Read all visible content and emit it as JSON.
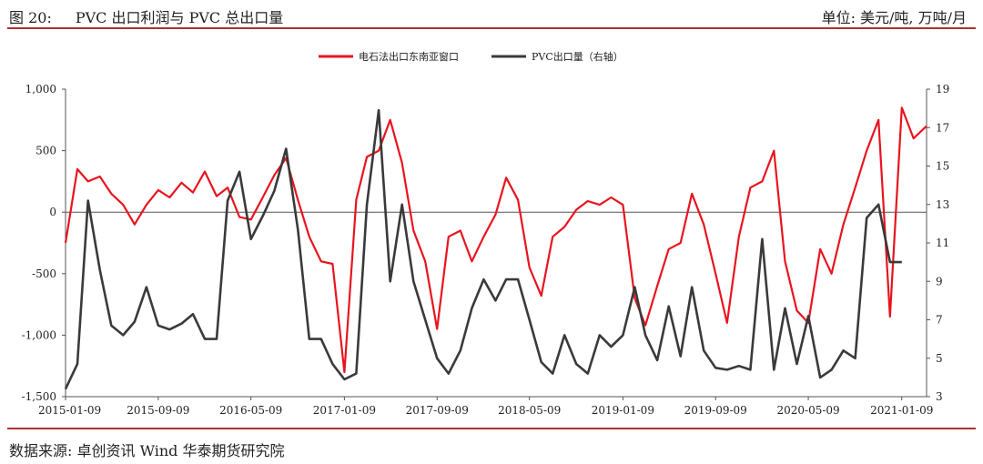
{
  "figure": {
    "label": "图 20:",
    "title": "PVC 出口利润与 PVC 总出口量",
    "unit": "单位: 美元/吨, 万吨/月",
    "source": "数据来源: 卓创资讯 Wind 华泰期货研究院"
  },
  "chart_data": {
    "type": "line",
    "legend_position": "top-center",
    "grid": false,
    "x_ticks": [
      "2015-01-09",
      "2015-09-09",
      "2016-05-09",
      "2017-01-09",
      "2017-09-09",
      "2018-05-09",
      "2019-01-09",
      "2019-09-09",
      "2020-05-09",
      "2021-01-09"
    ],
    "x_range": [
      "2015-01-09",
      "2021-03-15"
    ],
    "y_left": {
      "range": [
        -1500,
        1000
      ],
      "ticks": [
        "-1,500",
        "-1,000",
        "-500",
        "0",
        "500",
        "1,000"
      ]
    },
    "y_right": {
      "range": [
        3,
        19
      ],
      "ticks": [
        "3",
        "5",
        "7",
        "9",
        "11",
        "13",
        "15",
        "17",
        "19"
      ]
    },
    "series": [
      {
        "name": "电石法出口东南亚窗口",
        "axis": "left",
        "color": "#e8141e",
        "points": [
          [
            "2015-01-09",
            -250
          ],
          [
            "2015-02-09",
            350
          ],
          [
            "2015-03-09",
            250
          ],
          [
            "2015-04-09",
            290
          ],
          [
            "2015-05-09",
            150
          ],
          [
            "2015-06-09",
            60
          ],
          [
            "2015-07-09",
            -100
          ],
          [
            "2015-08-09",
            60
          ],
          [
            "2015-09-09",
            180
          ],
          [
            "2015-10-09",
            120
          ],
          [
            "2015-11-09",
            240
          ],
          [
            "2015-12-09",
            160
          ],
          [
            "2016-01-09",
            330
          ],
          [
            "2016-02-09",
            130
          ],
          [
            "2016-03-09",
            200
          ],
          [
            "2016-04-09",
            -40
          ],
          [
            "2016-05-09",
            -60
          ],
          [
            "2016-06-09",
            120
          ],
          [
            "2016-07-09",
            300
          ],
          [
            "2016-08-09",
            440
          ],
          [
            "2016-09-09",
            100
          ],
          [
            "2016-10-09",
            -200
          ],
          [
            "2016-11-09",
            -400
          ],
          [
            "2016-12-09",
            -420
          ],
          [
            "2017-01-09",
            -1300
          ],
          [
            "2017-02-09",
            100
          ],
          [
            "2017-03-09",
            450
          ],
          [
            "2017-04-09",
            500
          ],
          [
            "2017-05-09",
            750
          ],
          [
            "2017-06-09",
            400
          ],
          [
            "2017-07-09",
            -150
          ],
          [
            "2017-08-09",
            -400
          ],
          [
            "2017-09-09",
            -950
          ],
          [
            "2017-10-09",
            -200
          ],
          [
            "2017-11-09",
            -150
          ],
          [
            "2017-12-09",
            -400
          ],
          [
            "2018-01-09",
            -200
          ],
          [
            "2018-02-09",
            -20
          ],
          [
            "2018-03-09",
            280
          ],
          [
            "2018-04-09",
            100
          ],
          [
            "2018-05-09",
            -450
          ],
          [
            "2018-06-09",
            -680
          ],
          [
            "2018-07-09",
            -200
          ],
          [
            "2018-08-09",
            -120
          ],
          [
            "2018-09-09",
            20
          ],
          [
            "2018-10-09",
            90
          ],
          [
            "2018-11-09",
            60
          ],
          [
            "2018-12-09",
            120
          ],
          [
            "2019-01-09",
            60
          ],
          [
            "2019-02-09",
            -700
          ],
          [
            "2019-03-09",
            -920
          ],
          [
            "2019-04-09",
            -600
          ],
          [
            "2019-05-09",
            -300
          ],
          [
            "2019-06-09",
            -250
          ],
          [
            "2019-07-09",
            150
          ],
          [
            "2019-08-09",
            -100
          ],
          [
            "2019-09-09",
            -500
          ],
          [
            "2019-10-09",
            -900
          ],
          [
            "2019-11-09",
            -200
          ],
          [
            "2019-12-09",
            200
          ],
          [
            "2020-01-09",
            250
          ],
          [
            "2020-02-09",
            500
          ],
          [
            "2020-03-09",
            -400
          ],
          [
            "2020-04-09",
            -800
          ],
          [
            "2020-05-09",
            -900
          ],
          [
            "2020-06-09",
            -300
          ],
          [
            "2020-07-09",
            -500
          ],
          [
            "2020-08-09",
            -100
          ],
          [
            "2020-09-09",
            200
          ],
          [
            "2020-10-09",
            500
          ],
          [
            "2020-11-09",
            750
          ],
          [
            "2020-12-09",
            -850
          ],
          [
            "2021-01-09",
            850
          ],
          [
            "2021-02-09",
            600
          ],
          [
            "2021-03-15",
            700
          ]
        ]
      },
      {
        "name": "PVC出口量（右轴）",
        "axis": "right",
        "color": "#3a3a3a",
        "points": [
          [
            "2015-01-09",
            3.4
          ],
          [
            "2015-02-09",
            4.7
          ],
          [
            "2015-03-09",
            13.2
          ],
          [
            "2015-04-09",
            9.6
          ],
          [
            "2015-05-09",
            6.7
          ],
          [
            "2015-06-09",
            6.2
          ],
          [
            "2015-07-09",
            6.9
          ],
          [
            "2015-08-09",
            8.7
          ],
          [
            "2015-09-09",
            6.7
          ],
          [
            "2015-10-09",
            6.5
          ],
          [
            "2015-11-09",
            6.8
          ],
          [
            "2015-12-09",
            7.3
          ],
          [
            "2016-01-09",
            6.0
          ],
          [
            "2016-02-09",
            6.0
          ],
          [
            "2016-03-09",
            13.2
          ],
          [
            "2016-04-09",
            14.7
          ],
          [
            "2016-05-09",
            11.2
          ],
          [
            "2016-06-09",
            12.4
          ],
          [
            "2016-07-09",
            13.7
          ],
          [
            "2016-08-09",
            15.9
          ],
          [
            "2016-09-09",
            11.7
          ],
          [
            "2016-10-09",
            6.0
          ],
          [
            "2016-11-09",
            6.0
          ],
          [
            "2016-12-09",
            4.7
          ],
          [
            "2017-01-09",
            3.9
          ],
          [
            "2017-02-09",
            4.2
          ],
          [
            "2017-03-09",
            13.0
          ],
          [
            "2017-04-09",
            17.9
          ],
          [
            "2017-05-09",
            9.0
          ],
          [
            "2017-06-09",
            13.0
          ],
          [
            "2017-07-09",
            9.0
          ],
          [
            "2017-08-09",
            7.0
          ],
          [
            "2017-09-09",
            5.0
          ],
          [
            "2017-10-09",
            4.2
          ],
          [
            "2017-11-09",
            5.4
          ],
          [
            "2017-12-09",
            7.6
          ],
          [
            "2018-01-09",
            9.1
          ],
          [
            "2018-02-09",
            8.0
          ],
          [
            "2018-03-09",
            9.1
          ],
          [
            "2018-04-09",
            9.1
          ],
          [
            "2018-05-09",
            7.0
          ],
          [
            "2018-06-09",
            4.8
          ],
          [
            "2018-07-09",
            4.2
          ],
          [
            "2018-08-09",
            6.2
          ],
          [
            "2018-09-09",
            4.7
          ],
          [
            "2018-10-09",
            4.2
          ],
          [
            "2018-11-09",
            6.2
          ],
          [
            "2018-12-09",
            5.6
          ],
          [
            "2019-01-09",
            6.2
          ],
          [
            "2019-02-09",
            8.7
          ],
          [
            "2019-03-09",
            6.2
          ],
          [
            "2019-04-09",
            4.9
          ],
          [
            "2019-05-09",
            7.7
          ],
          [
            "2019-06-09",
            5.1
          ],
          [
            "2019-07-09",
            8.7
          ],
          [
            "2019-08-09",
            5.4
          ],
          [
            "2019-09-09",
            4.5
          ],
          [
            "2019-10-09",
            4.4
          ],
          [
            "2019-11-09",
            4.6
          ],
          [
            "2019-12-09",
            4.4
          ],
          [
            "2020-01-09",
            11.2
          ],
          [
            "2020-02-09",
            4.4
          ],
          [
            "2020-03-09",
            7.6
          ],
          [
            "2020-04-09",
            4.7
          ],
          [
            "2020-05-09",
            7.2
          ],
          [
            "2020-06-09",
            4.0
          ],
          [
            "2020-07-09",
            4.4
          ],
          [
            "2020-08-09",
            5.4
          ],
          [
            "2020-09-09",
            5.0
          ],
          [
            "2020-10-09",
            12.3
          ],
          [
            "2020-11-09",
            13.0
          ],
          [
            "2020-12-09",
            10.0
          ],
          [
            "2021-01-09",
            10.0
          ]
        ]
      }
    ]
  }
}
